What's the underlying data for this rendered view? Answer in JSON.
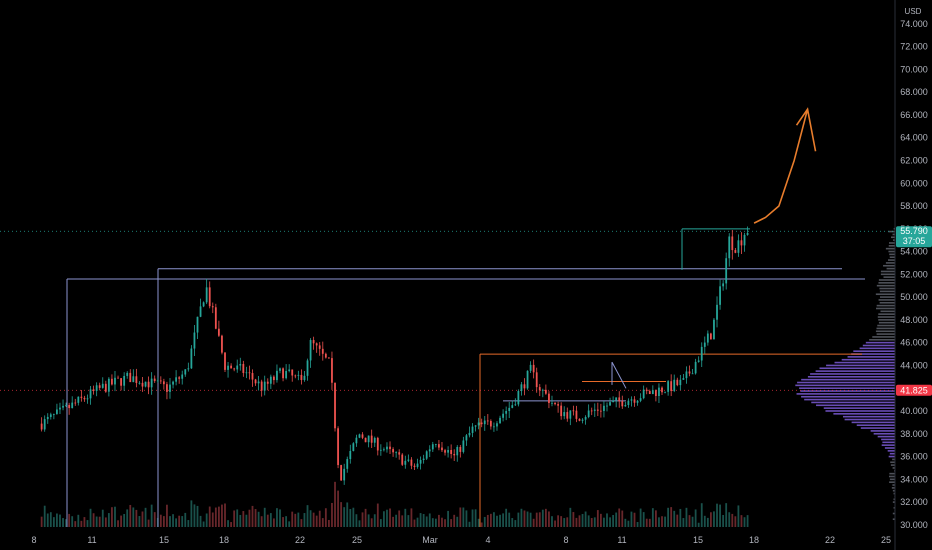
{
  "chart_data": {
    "type": "candlestick",
    "currency": "USD",
    "y_axis": {
      "min": 30000,
      "max": 76000,
      "tick_labels": [
        "74.000",
        "72.000",
        "70.000",
        "68.000",
        "66.000",
        "64.000",
        "62.000",
        "60.000",
        "58.000",
        "56.000",
        "54.000",
        "52.000",
        "50.000",
        "48.000",
        "46.000",
        "44.000",
        "42.000",
        "40.000",
        "38.000",
        "36.000",
        "34.000",
        "32.000",
        "30.000"
      ],
      "tick_values": [
        74000,
        72000,
        70000,
        68000,
        66000,
        64000,
        62000,
        60000,
        58000,
        56000,
        54000,
        52000,
        50000,
        48000,
        46000,
        44000,
        42000,
        40000,
        38000,
        36000,
        34000,
        32000,
        30000
      ]
    },
    "x_axis": {
      "tick_labels": [
        "8",
        "11",
        "15",
        "18",
        "22",
        "25",
        "Mar",
        "4",
        "8",
        "11",
        "15",
        "18",
        "22",
        "25"
      ]
    },
    "current_price": {
      "label": "55.790",
      "countdown": "37:05",
      "value": 55790,
      "color": "#26a69a"
    },
    "reference_price": {
      "label": "41.825",
      "value": 41825,
      "color": "#f23645"
    },
    "price_path": [
      {
        "d": 0,
        "p": 38500
      },
      {
        "d": 2,
        "p": 40500
      },
      {
        "d": 3.5,
        "p": 42000
      },
      {
        "d": 5,
        "p": 43000
      },
      {
        "d": 7,
        "p": 42000
      },
      {
        "d": 8,
        "p": 43500
      },
      {
        "d": 9,
        "p": 51000
      },
      {
        "d": 10,
        "p": 44000
      },
      {
        "d": 11,
        "p": 43500
      },
      {
        "d": 12,
        "p": 42000
      },
      {
        "d": 13,
        "p": 43500
      },
      {
        "d": 14,
        "p": 42500
      },
      {
        "d": 14.5,
        "p": 46000
      },
      {
        "d": 15.5,
        "p": 44000
      },
      {
        "d": 16,
        "p": 34000
      },
      {
        "d": 17,
        "p": 38000
      },
      {
        "d": 18,
        "p": 37000
      },
      {
        "d": 19,
        "p": 36000
      },
      {
        "d": 20,
        "p": 35000
      },
      {
        "d": 21,
        "p": 37500
      },
      {
        "d": 22,
        "p": 36000
      },
      {
        "d": 23,
        "p": 38500
      },
      {
        "d": 24,
        "p": 39000
      },
      {
        "d": 25,
        "p": 40500
      },
      {
        "d": 26,
        "p": 43500
      },
      {
        "d": 26.5,
        "p": 42000
      },
      {
        "d": 27.5,
        "p": 40000
      },
      {
        "d": 28.5,
        "p": 39500
      },
      {
        "d": 30,
        "p": 40500
      },
      {
        "d": 31,
        "p": 41000
      },
      {
        "d": 32,
        "p": 41500
      },
      {
        "d": 33,
        "p": 42000
      },
      {
        "d": 34,
        "p": 42500
      },
      {
        "d": 34.7,
        "p": 44500
      },
      {
        "d": 35.5,
        "p": 47000
      },
      {
        "d": 36,
        "p": 51000
      },
      {
        "d": 36.4,
        "p": 55000
      },
      {
        "d": 36.8,
        "p": 54500
      },
      {
        "d": 37.3,
        "p": 56000
      },
      {
        "d": 37.5,
        "p": 55800
      }
    ],
    "levels": [
      {
        "name": "resistance-1",
        "value": 51600,
        "color": "#8c94cf"
      },
      {
        "name": "resistance-2",
        "value": 52500,
        "color": "#8c94cf"
      },
      {
        "name": "range-top",
        "value": 45000,
        "color": "#e66a29"
      },
      {
        "name": "range-mid",
        "value": 42600,
        "color": "#e66a29"
      },
      {
        "name": "range-low",
        "value": 40900,
        "color": "#8c94cf"
      },
      {
        "name": "top-box",
        "value": 56000,
        "color": "#26a69a"
      }
    ],
    "projection": {
      "color": "#e87d2c",
      "points": [
        {
          "d": 37.7,
          "p": 56500
        },
        {
          "d": 38.3,
          "p": 57000
        },
        {
          "d": 39.0,
          "p": 58000
        },
        {
          "d": 39.8,
          "p": 62000
        },
        {
          "d": 40.5,
          "p": 66500
        }
      ]
    },
    "volume_profile": {
      "poc": 42000,
      "value_area": [
        36000,
        46000
      ],
      "color_value_area": "#7b5bd6",
      "color_outside": "#5c5f68"
    },
    "grid": false,
    "legend": "none"
  }
}
